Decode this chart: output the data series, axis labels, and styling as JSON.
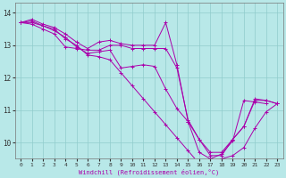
{
  "xlabel": "Windchill (Refroidissement éolien,°C)",
  "xlim": [
    -0.5,
    23.5
  ],
  "ylim": [
    9.5,
    14.3
  ],
  "yticks": [
    10,
    11,
    12,
    13,
    14
  ],
  "xticks": [
    0,
    1,
    2,
    3,
    4,
    5,
    6,
    7,
    8,
    9,
    10,
    11,
    12,
    13,
    14,
    15,
    16,
    17,
    18,
    19,
    20,
    21,
    22,
    23
  ],
  "bg_color": "#b8e8e8",
  "line_color": "#aa00aa",
  "grid_color": "#90cccc",
  "series": [
    [
      13.7,
      13.8,
      13.65,
      13.55,
      13.35,
      13.1,
      12.9,
      13.1,
      13.15,
      13.05,
      13.0,
      13.0,
      13.0,
      13.7,
      12.4,
      10.65,
      10.1,
      9.7,
      9.7,
      10.1,
      10.5,
      11.35,
      11.3,
      11.2
    ],
    [
      13.7,
      13.65,
      13.5,
      13.35,
      12.95,
      12.9,
      12.85,
      12.85,
      13.0,
      13.0,
      12.9,
      12.9,
      12.9,
      12.9,
      12.3,
      10.7,
      10.1,
      9.6,
      9.6,
      10.1,
      10.5,
      11.3,
      11.3,
      11.2
    ],
    [
      13.7,
      13.75,
      13.6,
      13.45,
      13.25,
      12.95,
      12.75,
      12.8,
      12.85,
      12.3,
      12.35,
      12.4,
      12.35,
      11.65,
      11.05,
      10.65,
      9.7,
      9.5,
      9.65,
      10.05,
      11.3,
      11.25,
      11.2,
      null
    ],
    [
      13.7,
      13.7,
      13.6,
      13.5,
      13.2,
      13.0,
      12.7,
      12.65,
      12.55,
      12.15,
      11.75,
      11.35,
      10.95,
      10.55,
      10.15,
      9.75,
      9.35,
      9.35,
      9.5,
      9.6,
      9.85,
      10.45,
      10.95,
      11.2
    ]
  ]
}
